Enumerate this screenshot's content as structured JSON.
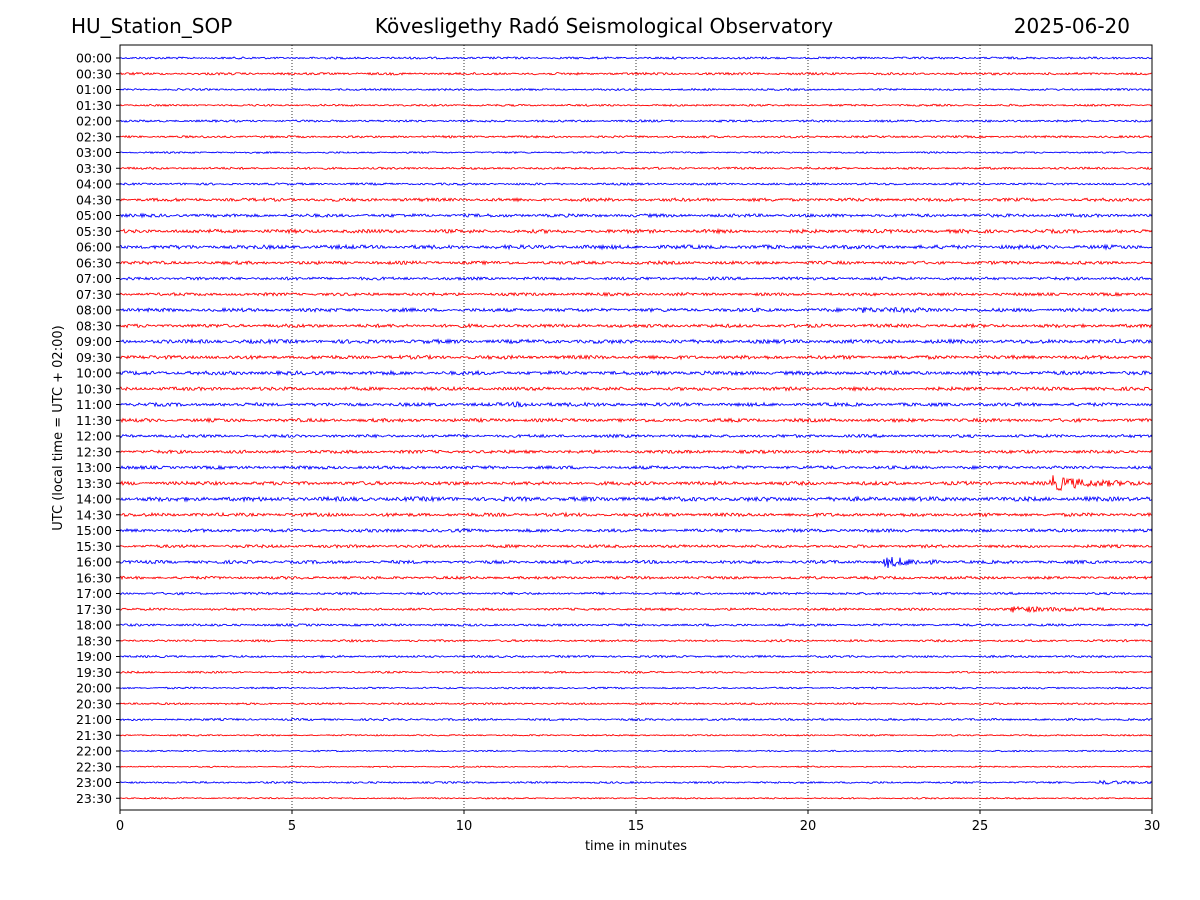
{
  "header": {
    "station": "HU_Station_SOP",
    "observatory": "Kövesligethy Radó Seismological Observatory",
    "date": "2025-06-20"
  },
  "chart_data": {
    "type": "line",
    "title": "Kövesligethy Radó Seismological Observatory",
    "xlabel": "time in minutes",
    "ylabel": "UTC (local time = UTC + 02:00)",
    "xlim": [
      0,
      30
    ],
    "xticks": [
      0,
      5,
      10,
      15,
      20,
      25,
      30
    ],
    "grid": "vertical dotted lines at x ticks",
    "colors": [
      "#0000ff",
      "#ff0000"
    ],
    "rows": [
      "00:00",
      "00:30",
      "01:00",
      "01:30",
      "02:00",
      "02:30",
      "03:00",
      "03:30",
      "04:00",
      "04:30",
      "05:00",
      "05:30",
      "06:00",
      "06:30",
      "07:00",
      "07:30",
      "08:00",
      "08:30",
      "09:00",
      "09:30",
      "10:00",
      "10:30",
      "11:00",
      "11:30",
      "12:00",
      "12:30",
      "13:00",
      "13:30",
      "14:00",
      "14:30",
      "15:00",
      "15:30",
      "16:00",
      "16:30",
      "17:00",
      "17:30",
      "18:00",
      "18:30",
      "19:00",
      "19:30",
      "20:00",
      "20:30",
      "21:00",
      "21:30",
      "22:00",
      "22:30",
      "23:00",
      "23:30"
    ],
    "noise_level": [
      0.5,
      0.55,
      0.45,
      0.45,
      0.5,
      0.5,
      0.4,
      0.5,
      0.5,
      0.75,
      0.75,
      0.85,
      0.9,
      0.75,
      0.7,
      0.7,
      0.8,
      0.8,
      0.9,
      0.85,
      0.9,
      0.8,
      0.8,
      0.8,
      0.7,
      0.75,
      0.75,
      0.85,
      1.0,
      0.8,
      0.75,
      0.7,
      0.75,
      0.65,
      0.55,
      0.55,
      0.55,
      0.5,
      0.5,
      0.45,
      0.4,
      0.45,
      0.5,
      0.35,
      0.35,
      0.3,
      0.45,
      0.35
    ],
    "events": [
      {
        "row": "08:00",
        "t": 21.5,
        "amp": 1.8,
        "dur": 3.5
      },
      {
        "row": "11:00",
        "t": 11.5,
        "amp": 1.1,
        "dur": 3.0
      },
      {
        "row": "13:30",
        "t": 27.1,
        "amp": 6.5,
        "dur": 2.5
      },
      {
        "row": "14:00",
        "t": 29.9,
        "amp": 1.4,
        "dur": 0.4
      },
      {
        "row": "16:00",
        "t": 22.3,
        "amp": 4.8,
        "dur": 1.5
      },
      {
        "row": "17:30",
        "t": 26.0,
        "amp": 2.8,
        "dur": 3.0
      },
      {
        "row": "23:00",
        "t": 28.5,
        "amp": 1.3,
        "dur": 1.8
      }
    ]
  }
}
